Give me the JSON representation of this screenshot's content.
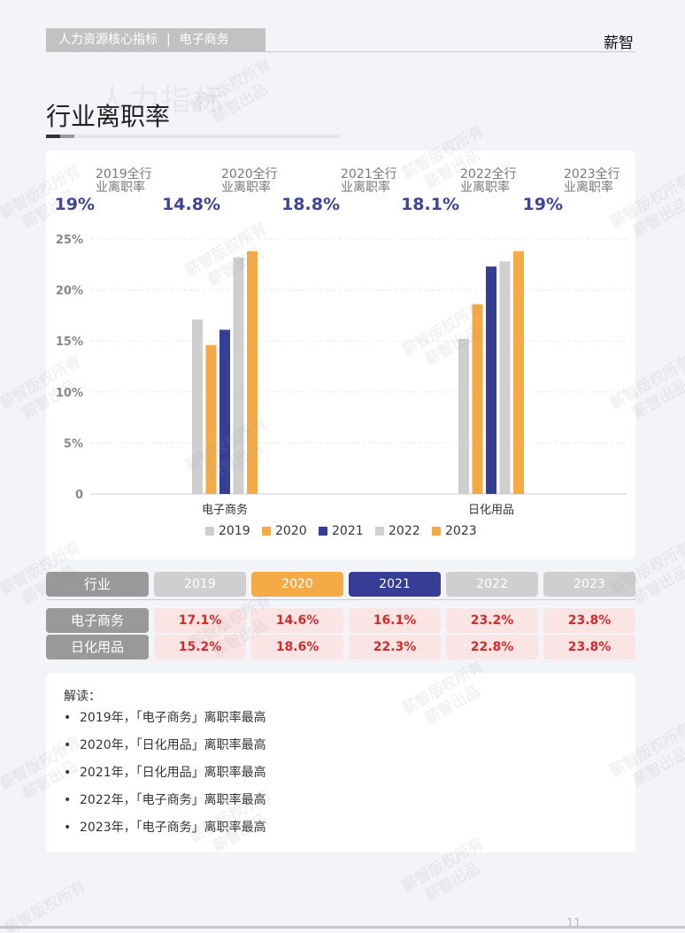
{
  "header": {
    "breadcrumb_left": "人力资源核心指标",
    "breadcrumb_sep": "|",
    "breadcrumb_right": "电子商务",
    "brand": "薪智"
  },
  "page": {
    "title": "行业离职率",
    "ghost_title": "人力指标"
  },
  "kpis": [
    {
      "value": "19%",
      "label": "2019全行业离职率"
    },
    {
      "value": "14.8%",
      "label": "2020全行业离职率"
    },
    {
      "value": "18.8%",
      "label": "2021全行业离职率"
    },
    {
      "value": "18.1%",
      "label": "2022全行业离职率"
    },
    {
      "value": "19%",
      "label": "2023全行业离职率"
    }
  ],
  "chart_data": {
    "type": "bar",
    "categories": [
      "电子商务",
      "日化用品"
    ],
    "series": [
      {
        "name": "2019",
        "values": [
          17.1,
          15.2
        ],
        "color": "#cfcfcf"
      },
      {
        "name": "2020",
        "values": [
          14.6,
          18.6
        ],
        "color": "#f5ab45"
      },
      {
        "name": "2021",
        "values": [
          16.1,
          22.3
        ],
        "color": "#353d94"
      },
      {
        "name": "2022",
        "values": [
          23.2,
          22.8
        ],
        "color": "#cfcfcf"
      },
      {
        "name": "2023",
        "values": [
          23.8,
          23.8
        ],
        "color": "#f5ab45"
      }
    ],
    "ylim": [
      0,
      25
    ],
    "yticks": [
      "0",
      "5%",
      "10%",
      "15%",
      "20%",
      "25%"
    ],
    "grid": true,
    "legend": "bottom"
  },
  "table": {
    "header_label": "行业",
    "years": [
      "2019",
      "2020",
      "2021",
      "2022",
      "2023"
    ],
    "year_colors": [
      "#cfcfcf",
      "#f5ab45",
      "#353d94",
      "#cfcfcf",
      "#cfcfcf"
    ],
    "rows": [
      {
        "name": "电子商务",
        "values": [
          "17.1%",
          "14.6%",
          "16.1%",
          "23.2%",
          "23.8%"
        ]
      },
      {
        "name": "日化用品",
        "values": [
          "15.2%",
          "18.6%",
          "22.3%",
          "22.8%",
          "23.8%"
        ]
      }
    ]
  },
  "notes": {
    "heading": "解读：",
    "items": [
      "2019年，「电子商务」离职率最高",
      "2020年，「日化用品」离职率最高",
      "2021年，「日化用品」离职率最高",
      "2022年，「电子商务」离职率最高",
      "2023年，「电子商务」离职率最高"
    ]
  },
  "footer": {
    "page_number": "11"
  },
  "watermark": {
    "line1": "薪智版权所有",
    "line2": "薪智出品"
  }
}
